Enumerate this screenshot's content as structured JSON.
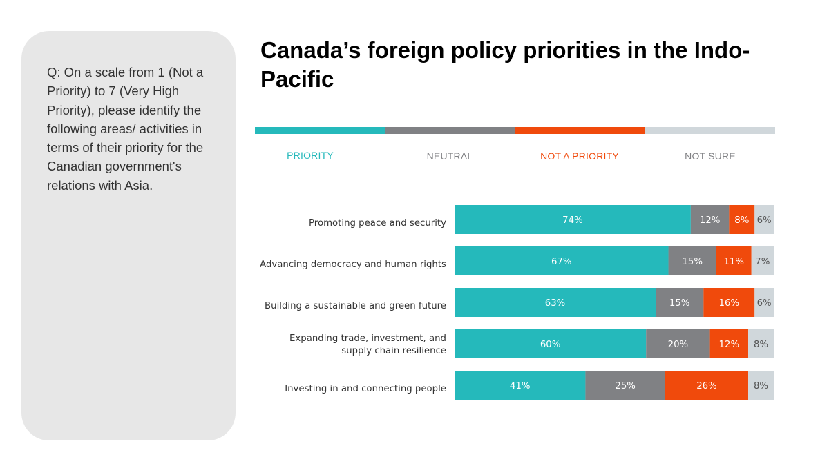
{
  "question": "Q: On a scale from 1 (Not a Priority) to 7 (Very High Priority), please identify the following areas/ activities in terms of their priority for the Canadian government's relations with Asia.",
  "chart_data": {
    "type": "bar",
    "orientation": "horizontal",
    "stacked": true,
    "title": "Canada’s foreign policy priorities in the Indo-Pacific",
    "legend_placement": "top",
    "categories": [
      [
        "Promoting peace and security"
      ],
      [
        "Advancing democracy and human rights"
      ],
      [
        "Building a sustainable and green future"
      ],
      [
        "Expanding trade, investment, and",
        "supply chain resilience"
      ],
      [
        "Investing in and connecting people"
      ]
    ],
    "series": [
      {
        "name": "PRIORITY",
        "color": "#25b9bb",
        "label_color": "#ffffff",
        "values": [
          74,
          67,
          63,
          60,
          41
        ]
      },
      {
        "name": "NEUTRAL",
        "color": "#808184",
        "label_color": "#ffffff",
        "values": [
          12,
          15,
          15,
          20,
          25
        ]
      },
      {
        "name": "NOT A PRIORITY",
        "color": "#f04a0c",
        "label_color": "#ffffff",
        "values": [
          8,
          11,
          16,
          12,
          26
        ]
      },
      {
        "name": "NOT SURE",
        "color": "#d0d7db",
        "label_color": "#555555",
        "values": [
          6,
          7,
          6,
          8,
          8
        ]
      }
    ],
    "value_suffix": "%"
  }
}
